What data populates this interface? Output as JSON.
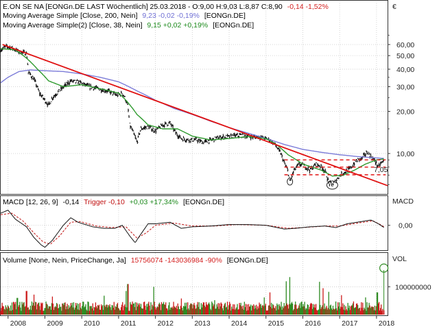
{
  "colors": {
    "price": "#111111",
    "ma200": "#7b7bd8",
    "ma38": "#2e9a2e",
    "trend": "#e01010",
    "trigger": "#c01010",
    "macd": "#111111",
    "vol_up": "#2e8b22",
    "vol_down": "#cc1a1a",
    "down_text": "#d42020",
    "up_text": "#1d8a1d",
    "ma200_text": "#6f6fd4",
    "grid": "#c8c8c8",
    "resistance": "#e01010"
  },
  "icons": {
    "corner": "euro-icon"
  },
  "corner_symbol": "€",
  "header": {
    "l1_name": "E.ON  SE NA [EONGn.DE LAST Wöchentlich] 25.03.2018 - O:9,00 H:9,03 L:8,87 C:8,90",
    "l1_change": "-0,14 -1,52%",
    "l2_name": "Moving Average Simple [Close, 200, Nein]",
    "l2_values": "9,23 -0,02 -0,19%",
    "l2_ticker": "[EONGn.DE]",
    "l3_name": "Moving Average Simple(2) [Close, 38, Nein]",
    "l3_values": "9,15 +0,02 +0,19%",
    "l3_ticker": "[EONGn.DE]"
  },
  "macd_header": {
    "name": "MACD [12, 26, 9]",
    "value": "-0,14",
    "trigger": "Trigger  -0,10",
    "change": "+0,03 +17,34%",
    "ticker": "[EONGn.DE]"
  },
  "volume_header": {
    "name": "Volume [None, Nein, PriceChange, Ja]",
    "values": "15756074 -143036984 -90%",
    "ticker": "[EONGn.DE]"
  },
  "axis_titles": {
    "macd": "MACD",
    "volume": "VOL"
  },
  "annotation": "7,05",
  "chart_data": [
    {
      "type": "line",
      "ylog": true,
      "ylim": [
        5.2,
        76
      ],
      "yticks": [
        {
          "v": 60,
          "label": "60,00"
        },
        {
          "v": 50,
          "label": "50,00"
        },
        {
          "v": 40,
          "label": "40,00"
        },
        {
          "v": 30,
          "label": "30,00"
        },
        {
          "v": 20,
          "label": "20,00"
        },
        {
          "v": 10,
          "label": "10,00"
        }
      ],
      "xlim": [
        2007.8,
        2018.3
      ],
      "x_ticks": [
        "2008",
        "2009",
        "2010",
        "2011",
        "2012",
        "2013",
        "2014",
        "2015",
        "2016",
        "2017",
        "2018"
      ],
      "price_keypoints": [
        [
          2007.8,
          55
        ],
        [
          2007.95,
          58
        ],
        [
          2008.1,
          57
        ],
        [
          2008.3,
          53
        ],
        [
          2008.5,
          52
        ],
        [
          2008.55,
          38
        ],
        [
          2008.7,
          34
        ],
        [
          2008.85,
          27
        ],
        [
          2009.0,
          24
        ],
        [
          2009.1,
          22
        ],
        [
          2009.2,
          25
        ],
        [
          2009.45,
          29
        ],
        [
          2009.7,
          33
        ],
        [
          2009.95,
          32
        ],
        [
          2010.2,
          30
        ],
        [
          2010.45,
          29
        ],
        [
          2010.7,
          28
        ],
        [
          2010.95,
          26
        ],
        [
          2011.1,
          27
        ],
        [
          2011.2,
          24
        ],
        [
          2011.25,
          21.5
        ],
        [
          2011.3,
          16
        ],
        [
          2011.4,
          14
        ],
        [
          2011.5,
          12
        ],
        [
          2011.6,
          15
        ],
        [
          2011.8,
          15.5
        ],
        [
          2012.0,
          14.5
        ],
        [
          2012.2,
          16
        ],
        [
          2012.4,
          16.5
        ],
        [
          2012.55,
          14
        ],
        [
          2012.7,
          12.8
        ],
        [
          2012.9,
          12.5
        ],
        [
          2013.1,
          12.5
        ],
        [
          2013.3,
          12
        ],
        [
          2013.5,
          12.4
        ],
        [
          2013.7,
          13
        ],
        [
          2014.0,
          13.2
        ],
        [
          2014.3,
          13.5
        ],
        [
          2014.6,
          13.2
        ],
        [
          2014.9,
          13
        ],
        [
          2015.1,
          12.5
        ],
        [
          2015.25,
          11.5
        ],
        [
          2015.4,
          10
        ],
        [
          2015.5,
          8.5
        ],
        [
          2015.6,
          7.4
        ],
        [
          2015.65,
          6.2
        ],
        [
          2015.75,
          7.5
        ],
        [
          2015.9,
          8.4
        ],
        [
          2016.05,
          8.1
        ],
        [
          2016.2,
          7.6
        ],
        [
          2016.35,
          8.4
        ],
        [
          2016.5,
          8.1
        ],
        [
          2016.62,
          7.3
        ],
        [
          2016.7,
          6.2
        ],
        [
          2016.8,
          5.95
        ],
        [
          2016.9,
          6.4
        ],
        [
          2017.0,
          7.0
        ],
        [
          2017.15,
          7.4
        ],
        [
          2017.3,
          7.9
        ],
        [
          2017.45,
          8.9
        ],
        [
          2017.6,
          9.2
        ],
        [
          2017.75,
          10.3
        ],
        [
          2017.85,
          9.5
        ],
        [
          2017.95,
          8.9
        ],
        [
          2018.05,
          8.0
        ],
        [
          2018.12,
          8.5
        ],
        [
          2018.2,
          8.9
        ]
      ],
      "ma200_keypoints": [
        [
          2007.8,
          32
        ],
        [
          2008.0,
          35
        ],
        [
          2008.3,
          38.5
        ],
        [
          2008.6,
          39.5
        ],
        [
          2009.0,
          39
        ],
        [
          2009.5,
          38.5
        ],
        [
          2010.0,
          37
        ],
        [
          2010.5,
          35
        ],
        [
          2011.0,
          32.5
        ],
        [
          2011.5,
          28
        ],
        [
          2012.0,
          24
        ],
        [
          2012.5,
          21
        ],
        [
          2013.0,
          19
        ],
        [
          2013.5,
          17
        ],
        [
          2014.0,
          15.3
        ],
        [
          2014.5,
          14
        ],
        [
          2015.0,
          12.8
        ],
        [
          2015.5,
          11.6
        ],
        [
          2016.0,
          10.7
        ],
        [
          2016.5,
          10.2
        ],
        [
          2017.0,
          9.8
        ],
        [
          2017.5,
          9.5
        ],
        [
          2018.0,
          9.3
        ],
        [
          2018.2,
          9.23
        ]
      ],
      "ma38_keypoints": [
        [
          2007.8,
          56
        ],
        [
          2008.2,
          55
        ],
        [
          2008.5,
          48
        ],
        [
          2008.8,
          40
        ],
        [
          2009.1,
          33
        ],
        [
          2009.5,
          30
        ],
        [
          2010.0,
          31
        ],
        [
          2010.5,
          29
        ],
        [
          2011.0,
          27
        ],
        [
          2011.2,
          24
        ],
        [
          2011.5,
          19
        ],
        [
          2011.8,
          16
        ],
        [
          2012.2,
          15
        ],
        [
          2012.6,
          15
        ],
        [
          2013.0,
          13.3
        ],
        [
          2013.5,
          12.5
        ],
        [
          2014.0,
          12.8
        ],
        [
          2014.5,
          13.2
        ],
        [
          2015.0,
          12.8
        ],
        [
          2015.3,
          11.5
        ],
        [
          2015.6,
          9.8
        ],
        [
          2016.0,
          8.4
        ],
        [
          2016.5,
          7.6
        ],
        [
          2016.8,
          6.9
        ],
        [
          2017.1,
          7.0
        ],
        [
          2017.4,
          7.6
        ],
        [
          2017.7,
          8.4
        ],
        [
          2018.0,
          9.0
        ],
        [
          2018.2,
          9.15
        ]
      ],
      "trendline": [
        [
          2007.85,
          60
        ],
        [
          2018.3,
          5.9
        ]
      ],
      "resistance_levels": [
        9.0,
        8.0,
        7.05
      ],
      "resistance_x_start": [
        2015.5,
        2015.5,
        2015.5
      ],
      "resistance_x_end": [
        2018.25,
        2018.25,
        2018.25
      ]
    },
    {
      "type": "line",
      "ylim": [
        -1.6,
        1.3
      ],
      "yticks": [
        {
          "v": 0,
          "label": "0,00"
        }
      ],
      "macd_keypoints": [
        [
          2007.8,
          0.8
        ],
        [
          2008.0,
          1.0
        ],
        [
          2008.2,
          0.4
        ],
        [
          2008.5,
          -0.1
        ],
        [
          2008.7,
          -0.8
        ],
        [
          2008.9,
          -1.3
        ],
        [
          2009.0,
          -1.45
        ],
        [
          2009.2,
          -1.0
        ],
        [
          2009.5,
          0.0
        ],
        [
          2009.7,
          0.5
        ],
        [
          2009.9,
          0.2
        ],
        [
          2010.3,
          -0.1
        ],
        [
          2010.6,
          -0.2
        ],
        [
          2010.9,
          -0.2
        ],
        [
          2011.1,
          0.0
        ],
        [
          2011.3,
          -0.7
        ],
        [
          2011.45,
          -1.15
        ],
        [
          2011.6,
          -0.6
        ],
        [
          2011.8,
          0.1
        ],
        [
          2012.0,
          0.1
        ],
        [
          2012.4,
          0.2
        ],
        [
          2012.7,
          -0.2
        ],
        [
          2013.0,
          -0.1
        ],
        [
          2013.5,
          -0.05
        ],
        [
          2014.0,
          0.05
        ],
        [
          2014.5,
          0.05
        ],
        [
          2015.0,
          0.0
        ],
        [
          2015.5,
          -0.25
        ],
        [
          2015.8,
          -0.2
        ],
        [
          2016.2,
          -0.1
        ],
        [
          2016.6,
          -0.05
        ],
        [
          2016.9,
          -0.15
        ],
        [
          2017.2,
          0.1
        ],
        [
          2017.6,
          0.25
        ],
        [
          2017.85,
          0.35
        ],
        [
          2018.05,
          0.1
        ],
        [
          2018.2,
          -0.14
        ]
      ],
      "trigger_keypoints": [
        [
          2007.8,
          0.7
        ],
        [
          2008.1,
          0.8
        ],
        [
          2008.4,
          0.3
        ],
        [
          2008.7,
          -0.5
        ],
        [
          2008.95,
          -1.1
        ],
        [
          2009.15,
          -1.25
        ],
        [
          2009.4,
          -0.7
        ],
        [
          2009.7,
          0.2
        ],
        [
          2009.95,
          0.25
        ],
        [
          2010.4,
          -0.05
        ],
        [
          2010.8,
          -0.15
        ],
        [
          2011.2,
          -0.1
        ],
        [
          2011.5,
          -0.85
        ],
        [
          2011.75,
          -0.5
        ],
        [
          2012.0,
          0.0
        ],
        [
          2012.5,
          0.15
        ],
        [
          2013.0,
          -0.05
        ],
        [
          2013.6,
          -0.05
        ],
        [
          2014.2,
          0.05
        ],
        [
          2015.0,
          0.0
        ],
        [
          2015.6,
          -0.2
        ],
        [
          2016.0,
          -0.15
        ],
        [
          2016.6,
          -0.05
        ],
        [
          2017.0,
          -0.05
        ],
        [
          2017.5,
          0.15
        ],
        [
          2017.9,
          0.3
        ],
        [
          2018.1,
          0.05
        ],
        [
          2018.2,
          -0.1
        ]
      ]
    },
    {
      "type": "bar",
      "yticks": [
        {
          "v": 100000000,
          "label": "100000000"
        }
      ],
      "ylim": [
        0,
        180000000
      ],
      "baseline_volume": 38000000,
      "spike_volumes": [
        [
          2008.25,
          60000000
        ],
        [
          2008.5,
          85000000
        ],
        [
          2008.7,
          72000000
        ],
        [
          2009.2,
          65000000
        ],
        [
          2010.6,
          68000000
        ],
        [
          2011.2,
          85000000
        ],
        [
          2011.25,
          110000000
        ],
        [
          2011.95,
          100000000
        ],
        [
          2012.7,
          58000000
        ],
        [
          2013.6,
          52000000
        ],
        [
          2014.95,
          62000000
        ],
        [
          2015.1,
          80000000
        ],
        [
          2015.55,
          120000000
        ],
        [
          2015.65,
          135000000
        ],
        [
          2016.45,
          118000000
        ],
        [
          2016.55,
          95000000
        ],
        [
          2016.7,
          82000000
        ],
        [
          2017.05,
          70000000
        ],
        [
          2017.7,
          62000000
        ],
        [
          2018.02,
          80000000
        ]
      ],
      "last_volume": 15756074
    }
  ]
}
